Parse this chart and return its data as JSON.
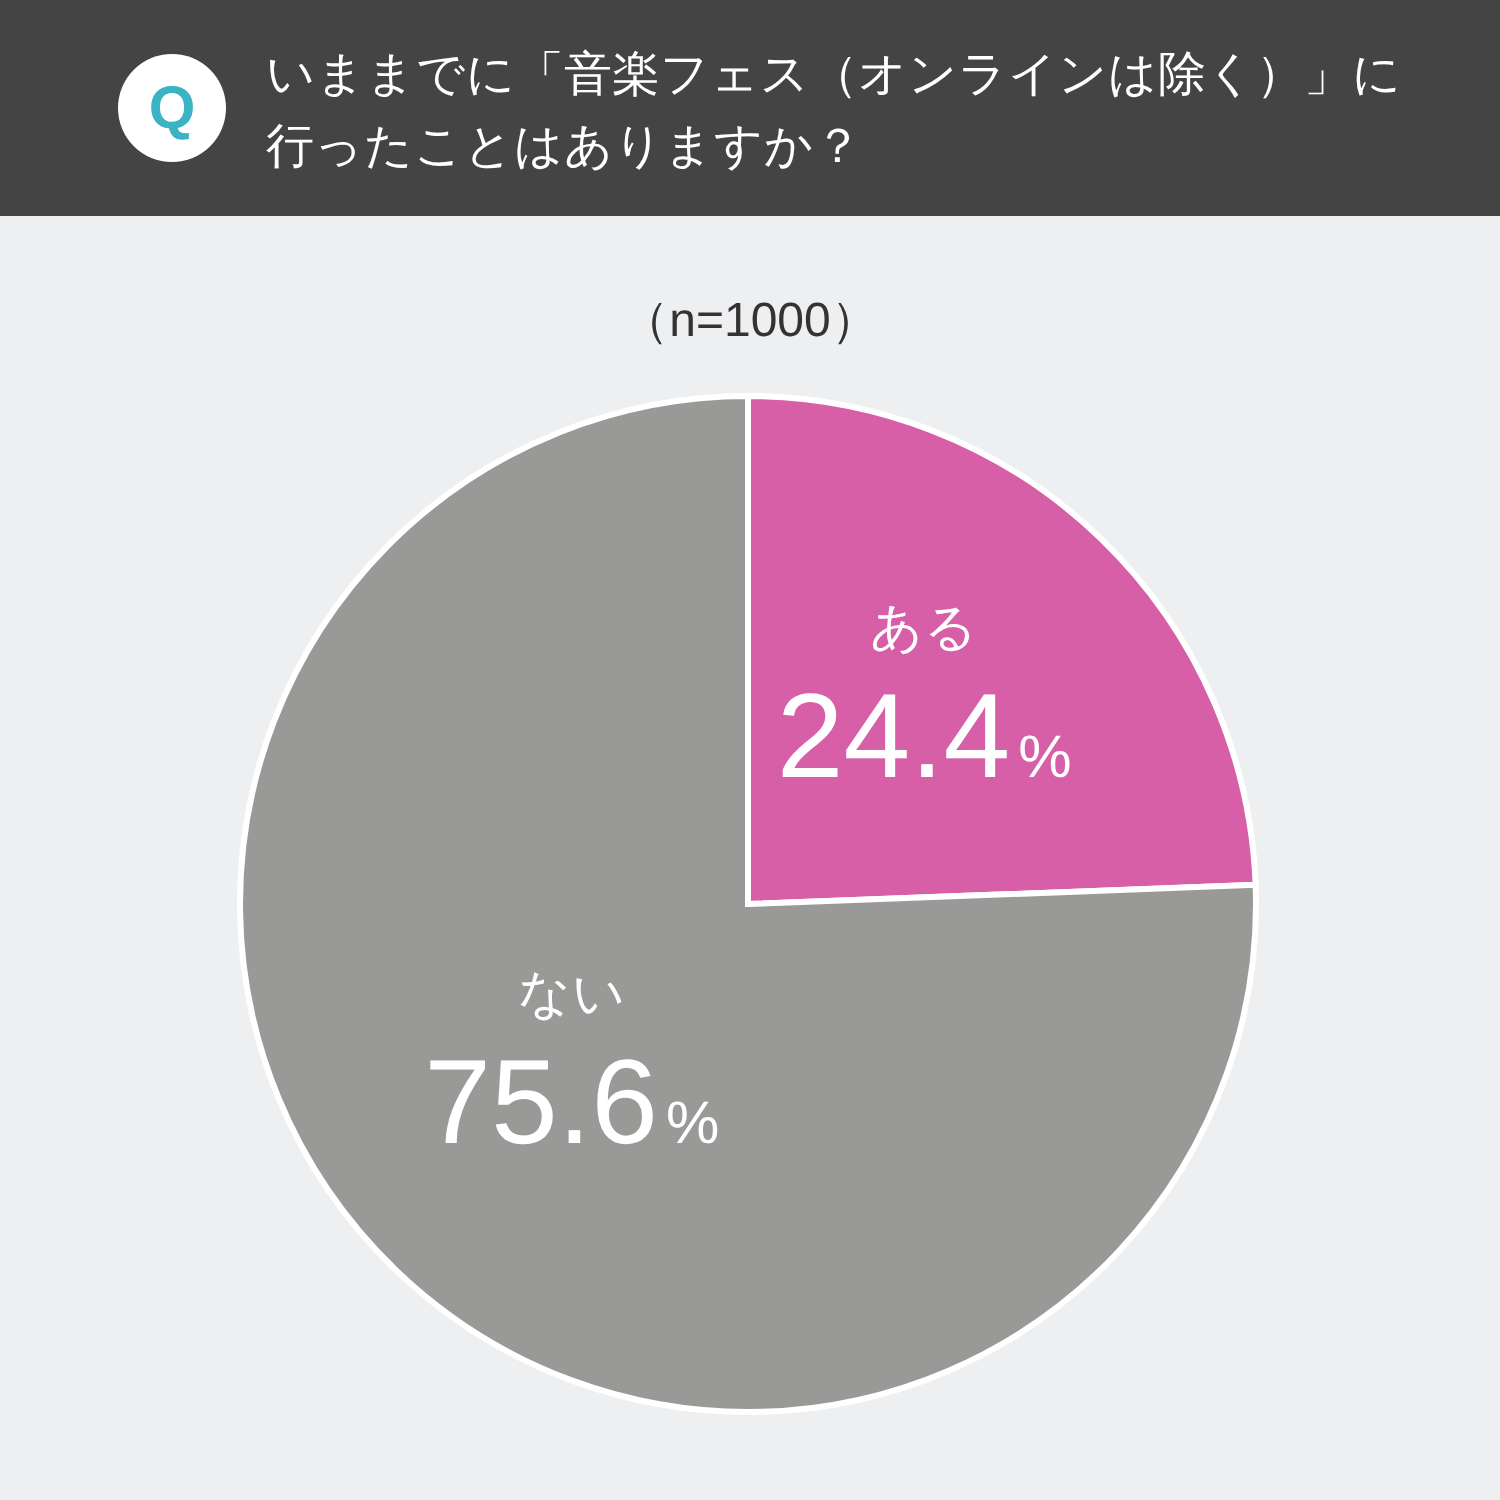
{
  "chart_data": {
    "type": "pie",
    "title": "いままでに「音楽フェス（オンラインは除く）」に行ったことはありますか？",
    "subtitle": "（n=1000）",
    "annotations": [
      "Q"
    ],
    "categories": [
      "ある",
      "ない"
    ],
    "values": [
      24.4,
      75.6
    ],
    "colors": [
      "#d65fa8",
      "#999a98"
    ],
    "value_labels": [
      "24.4%",
      "75.6%"
    ]
  }
}
